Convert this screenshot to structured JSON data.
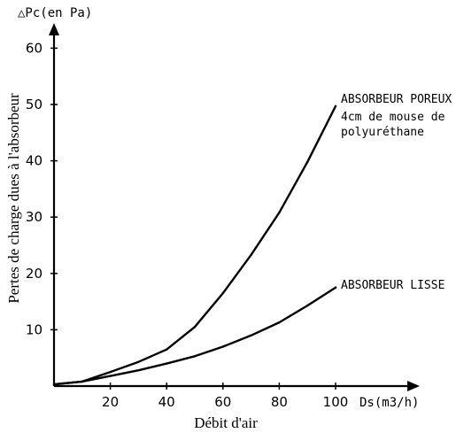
{
  "chart_data": {
    "type": "line",
    "xlabel": "Débit d'air",
    "x_axis_unit_label": "Ds(m3/h)",
    "ylabel": "Pertes de charge dues à l'absorbeur",
    "y_axis_unit_label": "△Pc(en Pa)",
    "xlim": [
      0,
      108
    ],
    "ylim": [
      0,
      64
    ],
    "x_ticks": [
      20,
      40,
      60,
      80,
      100
    ],
    "y_ticks": [
      10,
      20,
      30,
      40,
      50,
      60
    ],
    "grid": false,
    "legend": "none",
    "series": [
      {
        "name": "ABSORBEUR POREUX",
        "label_note": [
          "4cm de mouse de",
          "polyuréthane"
        ],
        "x": [
          0,
          10,
          20,
          30,
          40,
          50,
          60,
          70,
          80,
          90,
          100
        ],
        "y": [
          0.3,
          0.8,
          2.5,
          4.3,
          6.5,
          10.5,
          16.5,
          23.3,
          30.8,
          39.8,
          49.7
        ]
      },
      {
        "name": "ABSORBEUR LISSE",
        "x": [
          0,
          10,
          20,
          30,
          40,
          50,
          60,
          70,
          80,
          90,
          100
        ],
        "y": [
          0.3,
          0.8,
          1.8,
          2.8,
          4.0,
          5.3,
          7.0,
          9.0,
          11.3,
          14.3,
          17.5
        ]
      }
    ]
  }
}
